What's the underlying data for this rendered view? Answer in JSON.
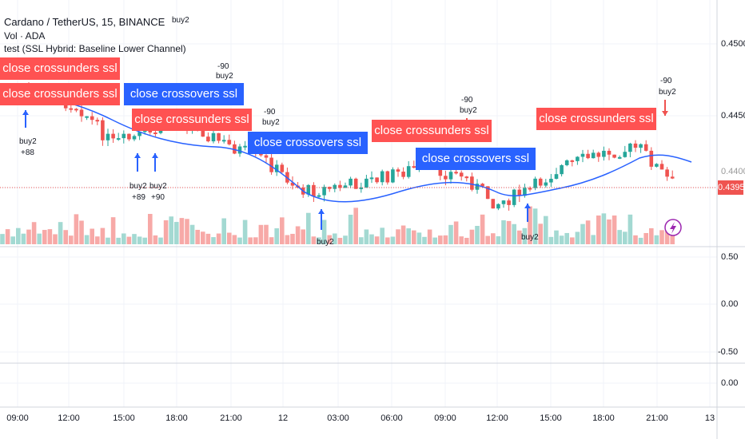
{
  "header": {
    "symbol_title": "Cardano / TetherUS, 15, BINANCE",
    "volume_indicator": "Vol · ADA",
    "strategy_indicator": "test (SSL Hybrid: Baseline Lower Channel)"
  },
  "price_axis": {
    "ticks": [
      "0.4500",
      "0.4450",
      "0.4400"
    ],
    "last_price": "0.4395",
    "last_price_color": "#ef5350"
  },
  "oscillator_axis": {
    "ticks": [
      "0.50",
      "0.00",
      "-0.50"
    ]
  },
  "third_pane_axis": {
    "ticks": [
      "0.00"
    ]
  },
  "time_axis": {
    "ticks": [
      "09:00",
      "12:00",
      "15:00",
      "18:00",
      "21:00",
      "12",
      "03:00",
      "06:00",
      "09:00",
      "12:00",
      "15:00",
      "18:00",
      "21:00",
      "13"
    ]
  },
  "signals": [
    {
      "text": "close crossunders ssl",
      "type": "sell"
    },
    {
      "text": "close crossunders ssl",
      "type": "sell"
    },
    {
      "text": "close crossovers ssl",
      "type": "buy"
    },
    {
      "text": "close crossunders ssl",
      "type": "sell"
    },
    {
      "text": "close crossovers ssl",
      "type": "buy"
    },
    {
      "text": "close crossunders ssl",
      "type": "sell"
    },
    {
      "text": "close crossovers ssl",
      "type": "buy"
    },
    {
      "text": "close crossunders ssl",
      "type": "sell"
    }
  ],
  "markers": [
    {
      "text": "buy2"
    },
    {
      "text": "buy2"
    },
    {
      "text": "+88"
    },
    {
      "text": "-90"
    },
    {
      "text": "buy2"
    },
    {
      "text": "buy2"
    },
    {
      "text": "+89"
    },
    {
      "text": "buy2"
    },
    {
      "text": "+90"
    },
    {
      "text": "-90"
    },
    {
      "text": "buy2"
    },
    {
      "text": "buy2"
    },
    {
      "text": "-90"
    },
    {
      "text": "buy2"
    },
    {
      "text": "buy2"
    },
    {
      "text": "-90"
    },
    {
      "text": "buy2"
    }
  ],
  "colors": {
    "up": "#26a69a",
    "down": "#ef5350",
    "baseline": "#2962ff",
    "buy_label": "#2962ff",
    "sell_label": "#ff5252"
  },
  "icons": {
    "dividends": "lightning-icon"
  }
}
